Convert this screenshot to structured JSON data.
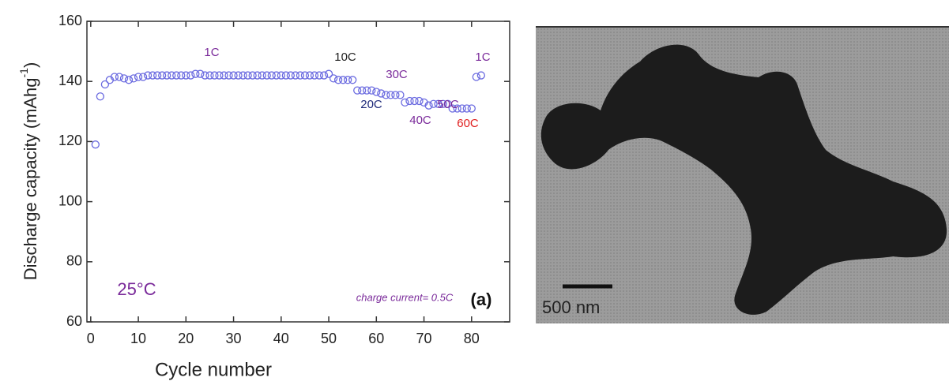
{
  "chart_data": {
    "type": "scatter",
    "y_label": {
      "text": "Discharge capacity (mAhg",
      "sup": "-1",
      "close": ")"
    },
    "x_label": "Cycle number",
    "color": "#6b6be0",
    "x": [
      1,
      2,
      3,
      4,
      5,
      6,
      7,
      8,
      9,
      10,
      11,
      12,
      13,
      14,
      15,
      16,
      17,
      18,
      19,
      20,
      21,
      22,
      23,
      24,
      25,
      26,
      27,
      28,
      29,
      30,
      31,
      32,
      33,
      34,
      35,
      36,
      37,
      38,
      39,
      40,
      41,
      42,
      43,
      44,
      45,
      46,
      47,
      48,
      49,
      50,
      51,
      52,
      53,
      54,
      55,
      56,
      57,
      58,
      59,
      60,
      61,
      62,
      63,
      64,
      65,
      66,
      67,
      68,
      69,
      70,
      71,
      72,
      73,
      74,
      75,
      76,
      77,
      78,
      79,
      80,
      81,
      82
    ],
    "values": [
      119,
      135,
      139,
      140.5,
      141.5,
      141.5,
      141,
      140.5,
      141,
      141.5,
      141.5,
      142,
      142,
      142,
      142,
      142,
      142,
      142,
      142,
      142,
      142,
      142.5,
      142.5,
      142,
      142,
      142,
      142,
      142,
      142,
      142,
      142,
      142,
      142,
      142,
      142,
      142,
      142,
      142,
      142,
      142,
      142,
      142,
      142,
      142,
      142,
      142,
      142,
      142,
      142,
      142.5,
      141,
      140.5,
      140.5,
      140.5,
      140.5,
      137,
      137,
      137,
      137,
      136.5,
      136,
      135.5,
      135.5,
      135.5,
      135.5,
      133,
      133.5,
      133.5,
      133.5,
      133,
      132,
      132.5,
      132.5,
      132.5,
      132.5,
      131,
      131,
      131,
      131,
      131,
      141.5,
      142
    ],
    "xlim": [
      -0.8,
      88
    ],
    "ylim": [
      60,
      160
    ],
    "xticks": [
      0,
      10,
      20,
      30,
      40,
      50,
      60,
      70,
      80
    ],
    "yticks": [
      60,
      80,
      100,
      120,
      140,
      160
    ],
    "annotations": [
      {
        "text": "1C",
        "color": "#7a2a9a"
      },
      {
        "text": "10C",
        "color": "#222222"
      },
      {
        "text": "30C",
        "color": "#7a2a9a"
      },
      {
        "text": "20C",
        "color": "#1f2a7a"
      },
      {
        "text": "50C",
        "color": "#7a2a9a"
      },
      {
        "text": "40C",
        "color": "#7a2a9a"
      },
      {
        "text": "60C",
        "color": "#e02020"
      },
      {
        "text": "1C",
        "color": "#7a2a9a"
      },
      {
        "text": "25°C",
        "color": "#7a2a9a"
      },
      {
        "text": "charge current= 0.5C",
        "color": "#7a2a9a"
      },
      {
        "text": "(a)",
        "color": "#111111"
      }
    ]
  },
  "image": {
    "scale_label": "500 nm"
  }
}
